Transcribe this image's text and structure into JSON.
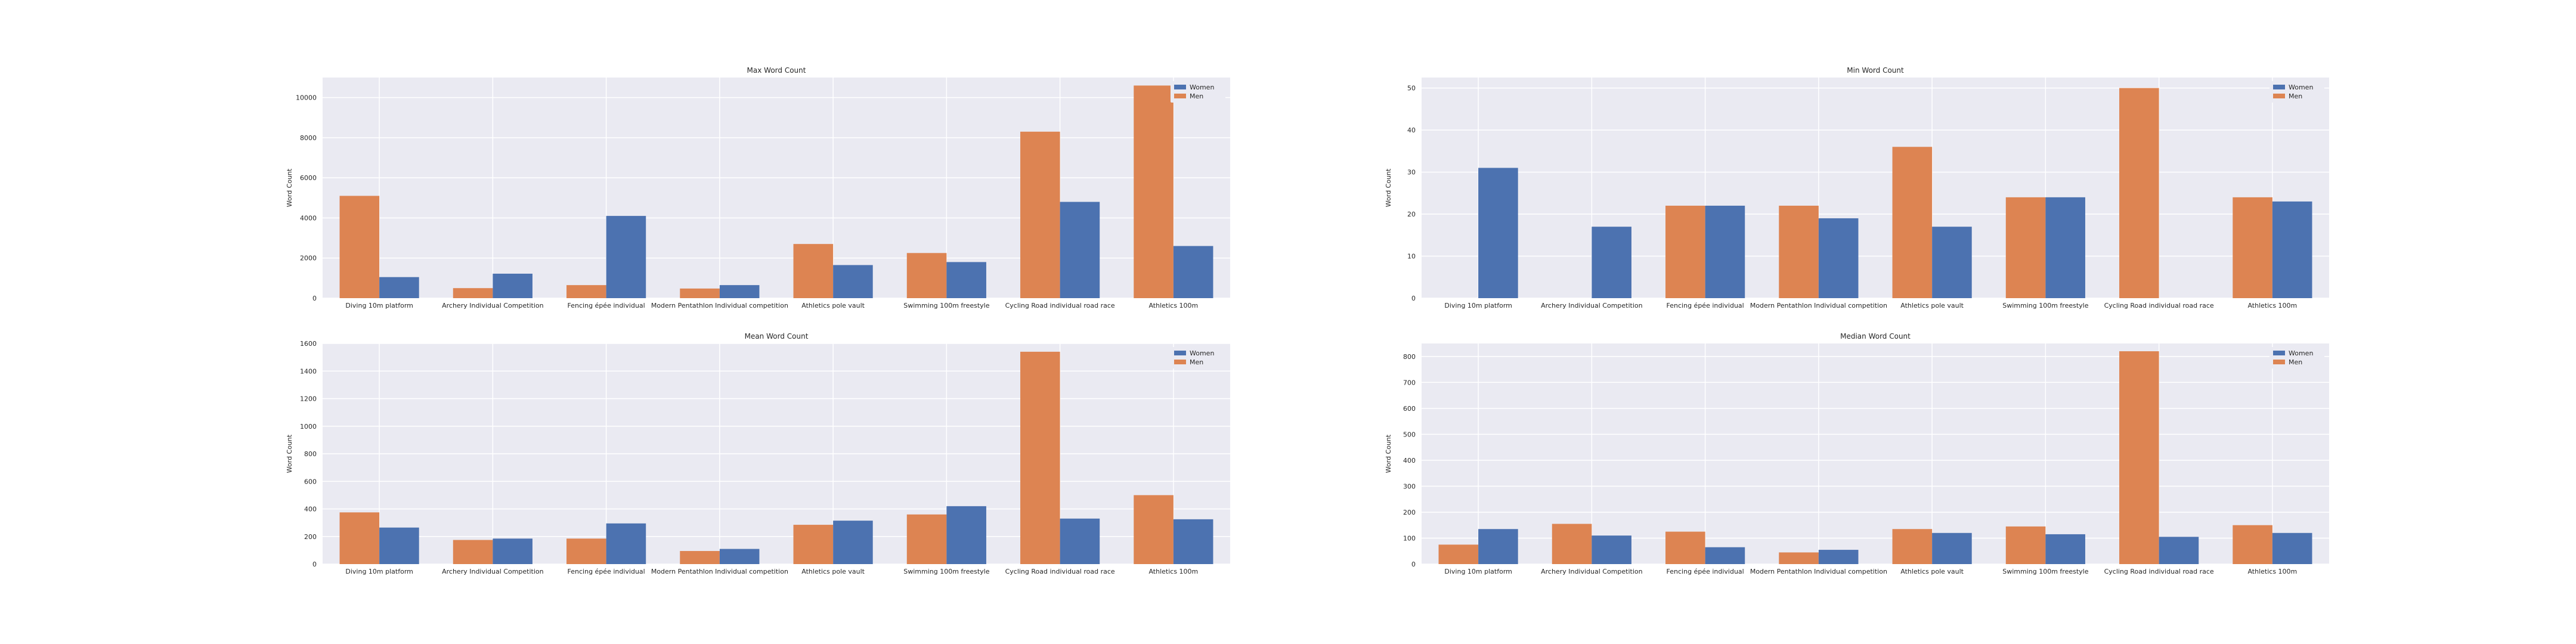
{
  "chart_data": [
    {
      "type": "bar",
      "title": "Max Word Count",
      "xlabel": "",
      "ylabel": "Word Count",
      "ylim": [
        0,
        11000
      ],
      "yticks": [
        0,
        2000,
        4000,
        6000,
        8000,
        10000
      ],
      "grid": true,
      "legend": "top-right",
      "categories": [
        "Diving 10m platform",
        "Archery Individual Competition",
        "Fencing épée individual",
        "Modern Pentathlon Individual competition",
        "Athletics pole vault",
        "Swimming 100m freestyle",
        "Cycling Road individual road race",
        "Athletics 100m"
      ],
      "series": [
        {
          "name": "Men",
          "color": "#dd8452",
          "values": [
            5100,
            500,
            650,
            480,
            2700,
            2250,
            8300,
            10600
          ]
        },
        {
          "name": "Women",
          "color": "#4c72b0",
          "values": [
            1050,
            1220,
            4100,
            650,
            1650,
            1800,
            4800,
            2600
          ]
        }
      ]
    },
    {
      "type": "bar",
      "title": "Min Word Count",
      "xlabel": "",
      "ylabel": "Word Count",
      "ylim": [
        0,
        52.5
      ],
      "yticks": [
        0,
        10,
        20,
        30,
        40,
        50
      ],
      "grid": true,
      "legend": "top-right",
      "categories": [
        "Diving 10m platform",
        "Archery Individual Competition",
        "Fencing épée individual",
        "Modern Pentathlon Individual competition",
        "Athletics pole vault",
        "Swimming 100m freestyle",
        "Cycling Road individual road race",
        "Athletics 100m"
      ],
      "series": [
        {
          "name": "Men",
          "color": "#dd8452",
          "values": [
            0,
            0,
            22,
            22,
            36,
            24,
            50,
            24
          ]
        },
        {
          "name": "Women",
          "color": "#4c72b0",
          "values": [
            31,
            17,
            22,
            19,
            17,
            24,
            0,
            23
          ]
        }
      ]
    },
    {
      "type": "bar",
      "title": "Mean Word Count",
      "xlabel": "",
      "ylabel": "Word Count",
      "ylim": [
        0,
        1600
      ],
      "yticks": [
        0,
        200,
        400,
        600,
        800,
        1000,
        1200,
        1400,
        1600
      ],
      "grid": true,
      "legend": "top-right",
      "categories": [
        "Diving 10m platform",
        "Archery Individual Competition",
        "Fencing épée individual",
        "Modern Pentathlon Individual competition",
        "Athletics pole vault",
        "Swimming 100m freestyle",
        "Cycling Road individual road race",
        "Athletics 100m"
      ],
      "series": [
        {
          "name": "Men",
          "color": "#dd8452",
          "values": [
            375,
            175,
            185,
            95,
            285,
            360,
            1540,
            500
          ]
        },
        {
          "name": "Women",
          "color": "#4c72b0",
          "values": [
            265,
            185,
            295,
            110,
            315,
            420,
            330,
            325
          ]
        }
      ]
    },
    {
      "type": "bar",
      "title": "Median Word Count",
      "xlabel": "",
      "ylabel": "Word Count",
      "ylim": [
        0,
        850
      ],
      "yticks": [
        0,
        100,
        200,
        300,
        400,
        500,
        600,
        700,
        800
      ],
      "grid": true,
      "legend": "top-right",
      "categories": [
        "Diving 10m platform",
        "Archery Individual Competition",
        "Fencing épée individual",
        "Modern Pentathlon Individual competition",
        "Athletics pole vault",
        "Swimming 100m freestyle",
        "Cycling Road individual road race",
        "Athletics 100m"
      ],
      "series": [
        {
          "name": "Men",
          "color": "#dd8452",
          "values": [
            75,
            155,
            125,
            45,
            135,
            145,
            820,
            150
          ]
        },
        {
          "name": "Women",
          "color": "#4c72b0",
          "values": [
            135,
            110,
            65,
            55,
            120,
            115,
            105,
            120
          ]
        }
      ]
    }
  ]
}
